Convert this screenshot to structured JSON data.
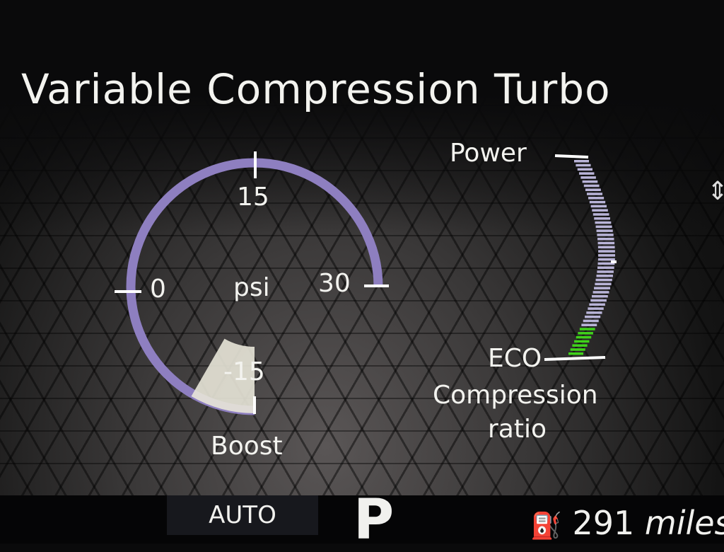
{
  "title": "Variable Compression Turbo",
  "boost_gauge": {
    "label": "Boost",
    "unit": "psi",
    "ticks": [
      "-15",
      "0",
      "15",
      "30"
    ],
    "min": -15,
    "max": 30,
    "value": -10,
    "arc_color": "#8e7fc0",
    "fill_color": "#e8e6d8"
  },
  "compression_gauge": {
    "label_line1": "Compression",
    "label_line2": "ratio",
    "top_label": "Power",
    "bottom_label": "ECO",
    "level_percent": 15,
    "bar_color": "#b9b4d8",
    "fill_color": "#3fd21a"
  },
  "status_bar": {
    "mode": "AUTO",
    "gear": "P",
    "range_value": "291",
    "range_unit": "miles",
    "fuel_icon": "fuel-pump-icon"
  },
  "side_icon": "up-down-chevron-icon"
}
